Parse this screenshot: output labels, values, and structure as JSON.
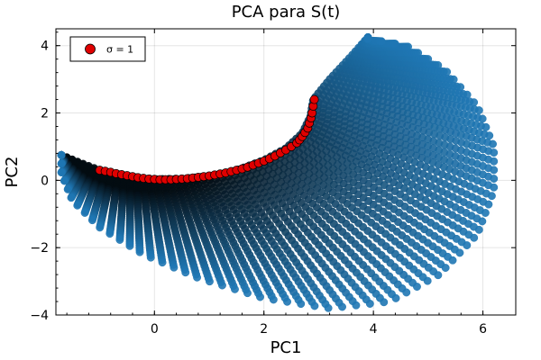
{
  "chart_data": {
    "type": "scatter",
    "title": "PCA para S(t)",
    "xlabel": "PC1",
    "ylabel": "PC2",
    "xlim": [
      -1.8,
      6.6
    ],
    "ylim": [
      -4.0,
      4.5
    ],
    "xticks": [
      0,
      2,
      4,
      6
    ],
    "xtick_labels": [
      "0",
      "2",
      "4",
      "6"
    ],
    "yticks": [
      -4,
      -2,
      0,
      2,
      4
    ],
    "ytick_labels": [
      "−4",
      "−2",
      "0",
      "2",
      "4"
    ],
    "grid": true,
    "legend_position": "top-left",
    "colors": {
      "family": "#1f77b4",
      "highlight": "#e00000",
      "highlight_edge": "#000000"
    },
    "background_family": {
      "name": "",
      "description_points": "dense crescent of overlapping markers bounded by inner arc and outer envelope",
      "outer_boundary": [
        [
          -1.7,
          0.75
        ],
        [
          -1.7,
          0.2
        ],
        [
          -1.5,
          -0.6
        ],
        [
          -1.0,
          -1.4
        ],
        [
          -0.2,
          -2.2
        ],
        [
          0.8,
          -2.9
        ],
        [
          2.0,
          -3.5
        ],
        [
          3.2,
          -3.8
        ],
        [
          4.3,
          -3.6
        ],
        [
          5.2,
          -2.8
        ],
        [
          5.9,
          -1.6
        ],
        [
          6.2,
          -0.3
        ],
        [
          6.2,
          1.0
        ],
        [
          5.9,
          2.2
        ],
        [
          5.3,
          3.3
        ],
        [
          4.6,
          4.0
        ],
        [
          3.9,
          4.2
        ]
      ],
      "inner_arc": [
        [
          -1.7,
          0.75
        ],
        [
          -1.4,
          0.55
        ],
        [
          -1.0,
          0.3
        ],
        [
          -0.5,
          0.12
        ],
        [
          0.0,
          0.03
        ],
        [
          0.5,
          0.05
        ],
        [
          1.0,
          0.12
        ],
        [
          1.5,
          0.3
        ],
        [
          2.0,
          0.6
        ],
        [
          2.4,
          0.95
        ],
        [
          2.7,
          1.4
        ],
        [
          2.85,
          1.9
        ],
        [
          2.9,
          2.4
        ],
        [
          3.2,
          3.0
        ],
        [
          3.6,
          3.7
        ],
        [
          3.9,
          4.25
        ]
      ]
    },
    "series": [
      {
        "name": "σ = 1",
        "x": [
          -1.0,
          -0.9,
          -0.8,
          -0.7,
          -0.6,
          -0.5,
          -0.4,
          -0.3,
          -0.2,
          -0.1,
          0.0,
          0.1,
          0.2,
          0.3,
          0.4,
          0.5,
          0.6,
          0.7,
          0.8,
          0.9,
          1.0,
          1.1,
          1.2,
          1.3,
          1.4,
          1.5,
          1.6,
          1.7,
          1.8,
          1.9,
          2.0,
          2.1,
          2.2,
          2.3,
          2.4,
          2.5,
          2.6,
          2.65,
          2.7,
          2.75,
          2.8,
          2.83,
          2.86,
          2.88,
          2.9,
          2.92
        ],
        "y": [
          0.3,
          0.27,
          0.24,
          0.2,
          0.17,
          0.14,
          0.11,
          0.08,
          0.06,
          0.04,
          0.03,
          0.02,
          0.02,
          0.02,
          0.03,
          0.04,
          0.05,
          0.07,
          0.09,
          0.11,
          0.13,
          0.16,
          0.19,
          0.22,
          0.26,
          0.3,
          0.34,
          0.39,
          0.45,
          0.51,
          0.57,
          0.64,
          0.72,
          0.81,
          0.9,
          1.0,
          1.11,
          1.2,
          1.3,
          1.42,
          1.55,
          1.7,
          1.85,
          2.0,
          2.2,
          2.4
        ]
      }
    ]
  }
}
